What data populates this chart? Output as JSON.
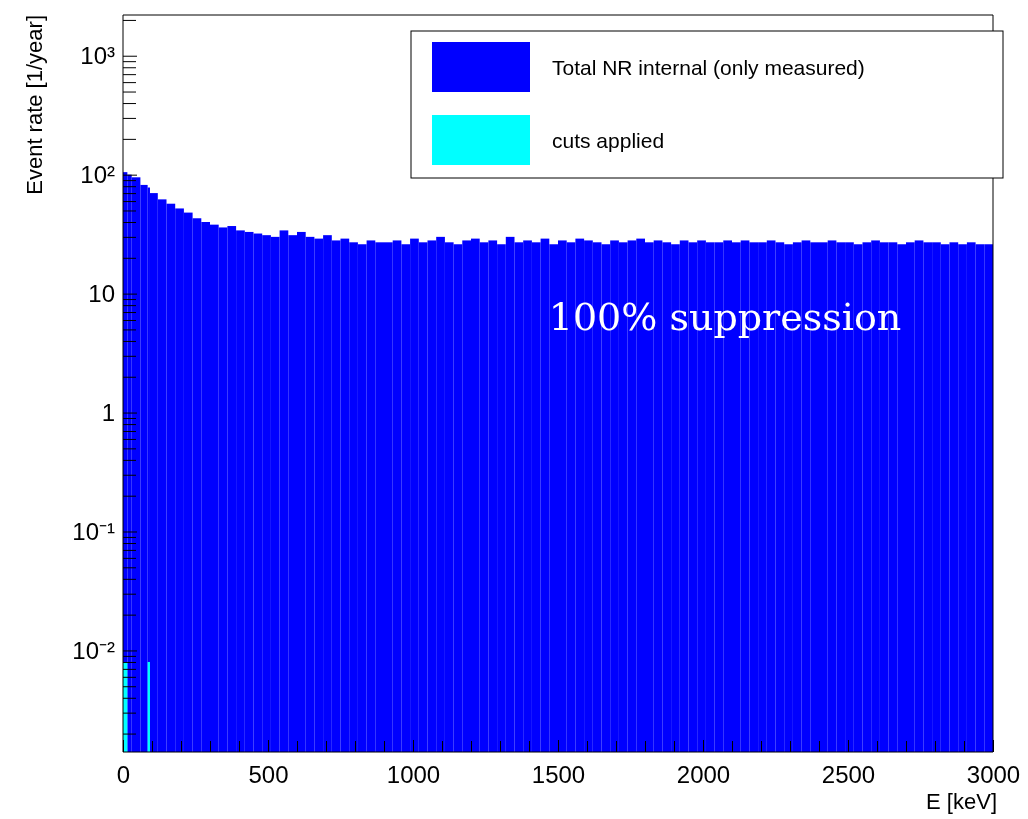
{
  "chart_data": {
    "type": "histogram",
    "xlabel": "E [keV]",
    "ylabel": "Event rate [1/year]",
    "log": "y",
    "legend": "top right",
    "annotations": [
      "100% suppression"
    ],
    "xlim": [
      0,
      3000
    ],
    "ylim": [
      0.0014,
      2200
    ],
    "xticks": [
      0,
      {
        "value": 100,
        "label": null
      },
      {
        "value": 200,
        "label": null
      },
      {
        "value": 300,
        "label": null
      },
      {
        "value": 400,
        "label": null
      },
      500,
      {
        "value": 600,
        "label": null
      },
      {
        "value": 700,
        "label": null
      },
      {
        "value": 800,
        "label": null
      },
      {
        "value": 900,
        "label": null
      },
      1000,
      {
        "value": 1100,
        "label": null
      },
      {
        "value": 1200,
        "label": null
      },
      {
        "value": 1300,
        "label": null
      },
      {
        "value": 1400,
        "label": null
      },
      1500,
      {
        "value": 1600,
        "label": null
      },
      {
        "value": 1700,
        "label": null
      },
      {
        "value": 1800,
        "label": null
      },
      {
        "value": 1900,
        "label": null
      },
      2000,
      {
        "value": 2100,
        "label": null
      },
      {
        "value": 2200,
        "label": null
      },
      {
        "value": 2300,
        "label": null
      },
      {
        "value": 2400,
        "label": null
      },
      2500,
      {
        "value": 2600,
        "label": null
      },
      {
        "value": 2700,
        "label": null
      },
      {
        "value": 2800,
        "label": null
      },
      {
        "value": 2900,
        "label": null
      },
      3000
    ],
    "yticks": [
      {
        "value": 0.002,
        "label": null
      },
      {
        "value": 0.003,
        "label": null
      },
      {
        "value": 0.004,
        "label": null
      },
      {
        "value": 0.005,
        "label": null
      },
      {
        "value": 0.006,
        "label": null
      },
      {
        "value": 0.007,
        "label": null
      },
      {
        "value": 0.008,
        "label": null
      },
      {
        "value": 0.009,
        "label": null
      },
      {
        "value": 0.01,
        "label": "10⁻²"
      },
      {
        "value": 0.02,
        "label": null
      },
      {
        "value": 0.03,
        "label": null
      },
      {
        "value": 0.04,
        "label": null
      },
      {
        "value": 0.05,
        "label": null
      },
      {
        "value": 0.06,
        "label": null
      },
      {
        "value": 0.07,
        "label": null
      },
      {
        "value": 0.08,
        "label": null
      },
      {
        "value": 0.09,
        "label": null
      },
      {
        "value": 0.1,
        "label": "10⁻¹"
      },
      {
        "value": 0.2,
        "label": null
      },
      {
        "value": 0.3,
        "label": null
      },
      {
        "value": 0.4,
        "label": null
      },
      {
        "value": 0.5,
        "label": null
      },
      {
        "value": 0.6,
        "label": null
      },
      {
        "value": 0.7,
        "label": null
      },
      {
        "value": 0.8,
        "label": null
      },
      {
        "value": 0.9,
        "label": null
      },
      1,
      {
        "value": 2,
        "label": null
      },
      {
        "value": 3,
        "label": null
      },
      {
        "value": 4,
        "label": null
      },
      {
        "value": 5,
        "label": null
      },
      {
        "value": 6,
        "label": null
      },
      {
        "value": 7,
        "label": null
      },
      {
        "value": 8,
        "label": null
      },
      {
        "value": 9,
        "label": null
      },
      10,
      {
        "value": 20,
        "label": null
      },
      {
        "value": 30,
        "label": null
      },
      {
        "value": 40,
        "label": null
      },
      {
        "value": 50,
        "label": null
      },
      {
        "value": 60,
        "label": null
      },
      {
        "value": 70,
        "label": null
      },
      {
        "value": 80,
        "label": null
      },
      {
        "value": 90,
        "label": null
      },
      {
        "value": 100,
        "label": "10²"
      },
      {
        "value": 200,
        "label": null
      },
      {
        "value": 300,
        "label": null
      },
      {
        "value": 400,
        "label": null
      },
      {
        "value": 500,
        "label": null
      },
      {
        "value": 600,
        "label": null
      },
      {
        "value": 700,
        "label": null
      },
      {
        "value": 800,
        "label": null
      },
      {
        "value": 900,
        "label": null
      },
      {
        "value": 1000,
        "label": "10³"
      },
      {
        "value": 2000,
        "label": null
      }
    ],
    "bins": [
      0,
      15,
      30,
      60,
      85,
      93,
      120,
      150,
      180,
      210,
      240,
      270,
      300,
      330,
      360,
      390,
      420,
      450,
      480,
      510,
      540,
      570,
      600,
      630,
      660,
      690,
      720,
      750,
      780,
      810,
      840,
      870,
      900,
      930,
      960,
      990,
      1020,
      1050,
      1080,
      1110,
      1140,
      1170,
      1200,
      1230,
      1260,
      1290,
      1320,
      1350,
      1380,
      1410,
      1440,
      1470,
      1500,
      1530,
      1560,
      1590,
      1620,
      1650,
      1680,
      1710,
      1740,
      1770,
      1800,
      1830,
      1860,
      1890,
      1920,
      1950,
      1980,
      2010,
      2040,
      2070,
      2100,
      2130,
      2160,
      2190,
      2220,
      2250,
      2280,
      2310,
      2340,
      2370,
      2400,
      2430,
      2460,
      2490,
      2520,
      2550,
      2580,
      2610,
      2640,
      2670,
      2700,
      2730,
      2760,
      2790,
      2820,
      2850,
      2880,
      2910,
      2940,
      2970,
      3000
    ],
    "series": [
      {
        "name": "Total NR internal (only measured)",
        "color": "#0000ff",
        "values": [
          105,
          100,
          95,
          82,
          78,
          70,
          62,
          57,
          52,
          48,
          43,
          40,
          38,
          36,
          37,
          34,
          33,
          32,
          31,
          30,
          34,
          31,
          33,
          30,
          29,
          31,
          28,
          29,
          27,
          26,
          28,
          27,
          27,
          28,
          26,
          29,
          27,
          28,
          30,
          27,
          26,
          28,
          29,
          27,
          28,
          26,
          30,
          27,
          28,
          27,
          29,
          26,
          28,
          27,
          29,
          28,
          27,
          26,
          28,
          27,
          28,
          29,
          27,
          28,
          27,
          26,
          28,
          27,
          28,
          27,
          27,
          28,
          27,
          28,
          27,
          27,
          28,
          27,
          26,
          27,
          28,
          27,
          27,
          28,
          27,
          27,
          26,
          27,
          28,
          27,
          27,
          26,
          27,
          28,
          27,
          27,
          26,
          27,
          26,
          27,
          26,
          26
        ]
      },
      {
        "name": "cuts applied",
        "color": "#00ffff",
        "values": [
          0.008,
          null,
          null,
          null,
          0.008,
          null,
          null,
          null,
          null,
          null,
          null,
          null,
          null,
          null,
          null,
          null,
          null,
          null,
          null,
          null,
          null,
          null,
          null,
          null,
          null,
          null,
          null,
          null,
          null,
          null,
          null,
          null,
          null,
          null,
          null,
          null,
          null,
          null,
          null,
          null,
          null,
          null,
          null,
          null,
          null,
          null,
          null,
          null,
          null,
          null,
          null,
          null,
          null,
          null,
          null,
          null,
          null,
          null,
          null,
          null,
          null,
          null,
          null,
          null,
          null,
          null,
          null,
          null,
          null,
          null,
          null,
          null,
          null,
          null,
          null,
          null,
          null,
          null,
          null,
          null,
          null,
          null,
          null,
          null,
          null,
          null,
          null,
          null,
          null,
          null,
          null,
          null,
          null,
          null,
          null,
          null,
          null,
          null,
          null,
          null,
          null,
          null
        ]
      }
    ]
  }
}
